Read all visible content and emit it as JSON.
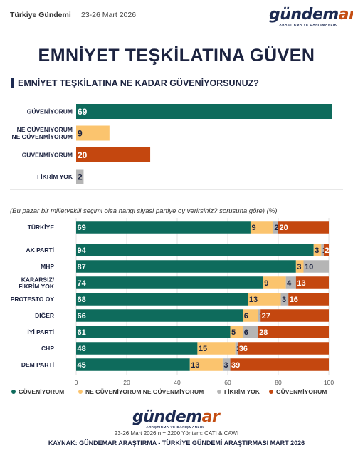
{
  "header": {
    "source": "Türkiye Gündemi",
    "date": "23-26 Mart 2026"
  },
  "logo": {
    "word_main": "gündem",
    "word_accent": "ar",
    "tagline": "ARAŞTIRMA VE DANIŞMANLIK"
  },
  "title": "EMNİYET TEŞKİLATINA GÜVEN",
  "question1": "EMNİYET TEŞKİLATINA NE KADAR GÜVENİYORSUNUZ?",
  "question2": "(Bu pazar bir milletvekili seçimi olsa hangi siyasi partiye oy verirsiniz? sorusuna göre) (%)",
  "colors": {
    "guveniyorum": "#0e6b5c",
    "ne_ne": "#fbc46e",
    "fikrim_yok": "#b5b5b5",
    "guvenmiyorum": "#c4470f"
  },
  "chart_data": [
    {
      "type": "bar",
      "orientation": "horizontal",
      "categories": [
        "GÜVENİYORUM",
        "NE GÜVENİYORUM NE GÜVENMİYORUM",
        "GÜVENMİYORUM",
        "FİKRİM YOK"
      ],
      "category_lines": [
        [
          "GÜVENİYORUM"
        ],
        [
          "NE GÜVENİYORUM",
          "NE GÜVENMİYORUM"
        ],
        [
          "GÜVENMİYORUM"
        ],
        [
          "FİKRİM YOK"
        ]
      ],
      "values": [
        69,
        9,
        20,
        2
      ],
      "bar_colors": [
        "#0e6b5c",
        "#fbc46e",
        "#c4470f",
        "#b5b5b5"
      ],
      "xlim": [
        0,
        69
      ]
    },
    {
      "type": "bar",
      "orientation": "horizontal",
      "stacked": true,
      "categories": [
        "TÜRKİYE",
        "AK PARTİ",
        "MHP",
        "KARARSIZ/ FİKRİM YOK",
        "PROTESTO OY",
        "DİĞER",
        "İYİ PARTİ",
        "CHP",
        "DEM PARTİ"
      ],
      "category_lines": [
        [
          "TÜRKİYE"
        ],
        [
          "AK PARTİ"
        ],
        [
          "MHP"
        ],
        [
          "KARARSIZ/",
          "FİKRİM YOK"
        ],
        [
          "PROTESTO OY"
        ],
        [
          "DİĞER"
        ],
        [
          "İYİ PARTİ"
        ],
        [
          "CHP"
        ],
        [
          "DEM PARTİ"
        ]
      ],
      "series": [
        {
          "name": "GÜVENİYORUM",
          "color": "#0e6b5c",
          "values": [
            69,
            94,
            87,
            74,
            68,
            66,
            61,
            48,
            45
          ]
        },
        {
          "name": "NE GÜVENİYORUM NE GÜVENMİYORUM",
          "color": "#fbc46e",
          "values": [
            9,
            3,
            3,
            9,
            13,
            6,
            5,
            15,
            13
          ]
        },
        {
          "name": "FİKRİM YOK",
          "color": "#b5b5b5",
          "values": [
            2,
            1,
            10,
            4,
            3,
            1,
            6,
            1,
            3
          ]
        },
        {
          "name": "GÜVENMİYORUM",
          "color": "#c4470f",
          "values": [
            20,
            2,
            0,
            13,
            16,
            27,
            28,
            36,
            39
          ]
        }
      ],
      "xlim": [
        0,
        100
      ],
      "xticks": [
        0,
        20,
        40,
        60,
        80,
        100
      ],
      "grid": true,
      "legend": "bottom"
    }
  ],
  "footer": {
    "meta": "23-26 Mart 2026 n = 2200 Yöntem: CATI & CAWI",
    "source": "KAYNAK: GÜNDEMAR ARAŞTIRMA - TÜRKİYE GÜNDEMİ ARAŞTIRMASI MART 2026"
  }
}
